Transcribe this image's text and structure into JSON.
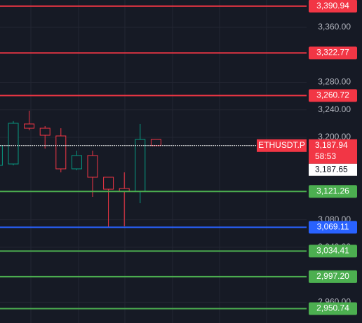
{
  "chart_data": {
    "type": "candlestick",
    "categories": [
      null,
      null,
      null,
      null,
      null,
      null,
      null,
      null,
      null,
      null,
      null
    ],
    "open": [
      3159.2,
      3161.2,
      3219.4,
      3213.2,
      3202.0,
      3154.1,
      3173.5,
      3141.9,
      3125.5,
      3121.3,
      3196.9
    ],
    "high": [
      3187.7,
      3223.5,
      3238.7,
      3216.3,
      3213.2,
      3180.6,
      3180.6,
      3141.9,
      3149.0,
      3219.4,
      3196.9
    ],
    "low": [
      3159.2,
      3159.2,
      3210.2,
      3183.6,
      3149.0,
      3152.0,
      3113.3,
      3068.5,
      3070.5,
      3104.1,
      3187.9
    ],
    "close": [
      3187.7,
      3220.4,
      3213.2,
      3203.0,
      3154.1,
      3173.5,
      3141.9,
      3124.5,
      3121.5,
      3196.9,
      3187.94
    ],
    "up_color": "#089981",
    "down_color": "#f23645",
    "ylim": [
      2929.8,
      3399.8
    ],
    "yticks": [
      {
        "value": 3360,
        "label": "3,360.00"
      },
      {
        "value": 3280,
        "label": "3,280.00"
      },
      {
        "value": 3240,
        "label": "3,240.00"
      },
      {
        "value": 3200,
        "label": "3,200.00"
      },
      {
        "value": 3080,
        "label": "3,080.00"
      },
      {
        "value": 3040,
        "label": "3,040.00"
      },
      {
        "value": 2960,
        "label": "2,960.00"
      }
    ],
    "grid": true,
    "levels": [
      {
        "value": 3390.94,
        "label": "3,390.94",
        "color": "#f23645"
      },
      {
        "value": 3322.77,
        "label": "3,322.77",
        "color": "#f23645"
      },
      {
        "value": 3260.72,
        "label": "3,260.72",
        "color": "#f23645"
      },
      {
        "value": 3121.26,
        "label": "3,121.26",
        "color": "#4caf50"
      },
      {
        "value": 3069.11,
        "label": "3,069.11",
        "color": "#2962ff"
      },
      {
        "value": 3034.41,
        "label": "3,034.41",
        "color": "#4caf50"
      },
      {
        "value": 2997.2,
        "label": "2,997.20",
        "color": "#4caf50"
      },
      {
        "value": 2950.74,
        "label": "2,950.74",
        "color": "#4caf50"
      }
    ],
    "symbol": "ETHUSDT.P",
    "last_price": {
      "value": 3187.94,
      "label": "3,187.94"
    },
    "countdown": "58:53",
    "mark_price": {
      "value": 3187.65,
      "label": "3,187.65"
    }
  }
}
